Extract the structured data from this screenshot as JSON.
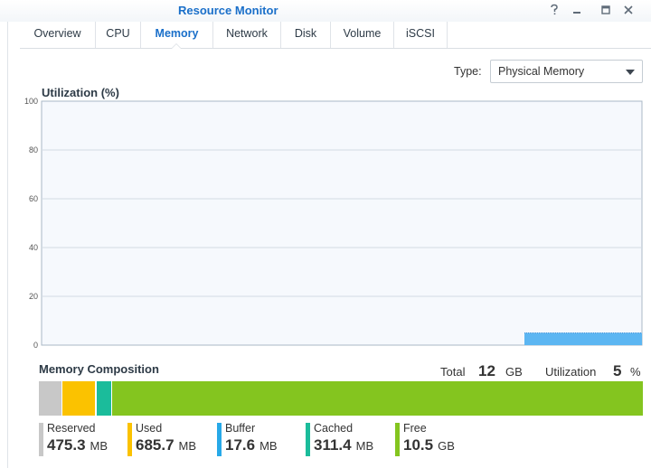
{
  "window": {
    "title": "Resource Monitor",
    "controls": {
      "help_icon": "question-icon",
      "minimize_icon": "minimize-icon",
      "maximize_icon": "maximize-icon",
      "close_icon": "close-icon"
    }
  },
  "tabs": [
    {
      "label": "Overview"
    },
    {
      "label": "CPU"
    },
    {
      "label": "Memory",
      "active": true
    },
    {
      "label": "Network"
    },
    {
      "label": "Disk"
    },
    {
      "label": "Volume"
    },
    {
      "label": "iSCSI"
    }
  ],
  "type_select": {
    "label": "Type:",
    "value": "Physical Memory"
  },
  "chart_data": {
    "type": "area",
    "title": "Utilization (%)",
    "ylim": [
      0,
      100
    ],
    "yticks": [
      "100",
      "80",
      "60",
      "40",
      "20",
      "0"
    ],
    "ytick_values": [
      100,
      80,
      60,
      40,
      20,
      0
    ],
    "grid": true,
    "series": [
      {
        "values": [
          5
        ],
        "color": "#5cb6f2"
      }
    ]
  },
  "composition": {
    "title": "Memory Composition",
    "total_label": "Total",
    "total_value": "12",
    "total_unit": "GB",
    "utilization_label": "Utilization",
    "utilization_value": "5",
    "utilization_unit": "%",
    "segments": [
      {
        "label": "Reserved",
        "value": "475.3",
        "unit": "MB",
        "mb": 475.3,
        "color": "#c8c8c8"
      },
      {
        "label": "Used",
        "value": "685.7",
        "unit": "MB",
        "mb": 685.7,
        "color": "#fbc200"
      },
      {
        "label": "Buffer",
        "value": "17.6",
        "unit": "MB",
        "mb": 17.6,
        "color": "#27a9e8"
      },
      {
        "label": "Cached",
        "value": "311.4",
        "unit": "MB",
        "mb": 311.4,
        "color": "#1bbc9b"
      },
      {
        "label": "Free",
        "value": "10.5",
        "unit": "GB",
        "mb": 10752,
        "color": "#84c51f"
      }
    ]
  }
}
